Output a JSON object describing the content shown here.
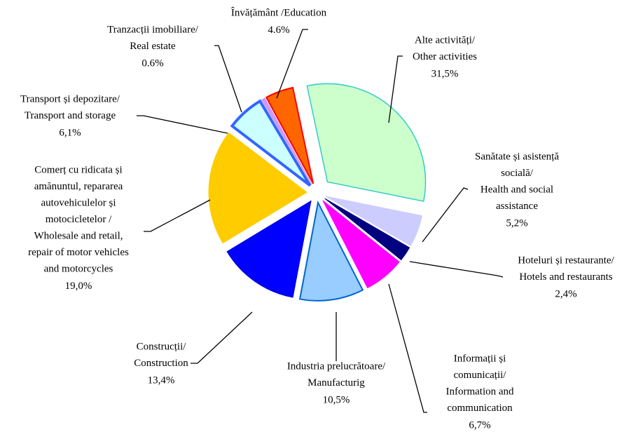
{
  "chart_data": {
    "type": "pie",
    "categories": [
      [
        "Alte activități/",
        "Other activities"
      ],
      [
        "Sanătate și asistență",
        "socială/",
        "Health and social",
        "assistance"
      ],
      [
        "Hoteluri și restaurante/",
        "Hotels and restaurants"
      ],
      [
        "Informații și",
        "comunicații/",
        "Information and",
        "communication"
      ],
      [
        "Industria prelucrătoare/",
        "Manufacturig"
      ],
      [
        "Construcții/",
        "Construction"
      ],
      [
        "Comerț cu ridicata și",
        "amănuntul, repararea",
        "autovehiculelor și",
        "motocicletelor /",
        "Wholesale and retail,",
        "repair of motor vehicles",
        "and motorcycles"
      ],
      [
        "Transport și depozitare/",
        "Transport and storage"
      ],
      [
        "Tranzacții imobiliare/",
        "Real estate"
      ],
      [
        "Învățământ /Education"
      ]
    ],
    "values": [
      31.5,
      5.2,
      2.4,
      6.7,
      10.5,
      13.4,
      19.0,
      6.1,
      0.6,
      4.6
    ],
    "value_labels": [
      "31,5%",
      "5,2%",
      "2,4%",
      "6,7%",
      "10,5%",
      "13,4%",
      "19,0%",
      "6,1%",
      "0.6%",
      "4.6%"
    ],
    "colors": [
      "#ccffcc",
      "#ccccff",
      "#000080",
      "#ff00ff",
      "#99ccff",
      "#0000ff",
      "#ffcc00",
      "#ccffff",
      "#cc99ff",
      "#ff6600"
    ]
  }
}
